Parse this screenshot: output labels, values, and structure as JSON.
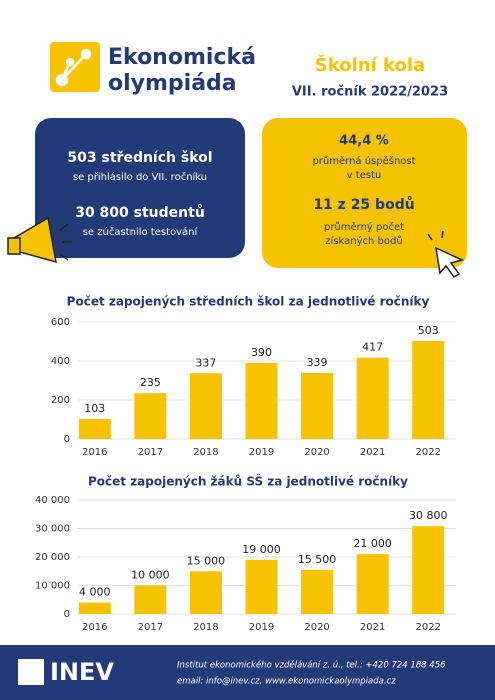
{
  "header": {
    "logo_line1": "Ekonomická",
    "logo_line2": "olympiáda",
    "title": "Školní kola",
    "subtitle": "VII. ročník 2022/2023"
  },
  "cards": {
    "left": [
      {
        "headline": "503 středních škol",
        "text": "se přihlásilo do VII. ročníku"
      },
      {
        "headline": "30 800 studentů",
        "text": "se zúčastnilo testování"
      }
    ],
    "right": [
      {
        "headline": "44,4 %",
        "lines": [
          "průměrná úspěšnost",
          "v testu"
        ]
      },
      {
        "headline": "11 z 25 bodů",
        "lines": [
          "průměrný počet",
          "získaných bodů"
        ]
      }
    ]
  },
  "chart_data": [
    {
      "type": "bar",
      "title": "Počet zapojených středních škol za jednotlivé ročníky",
      "categories": [
        "2016",
        "2017",
        "2018",
        "2019",
        "2020",
        "2021",
        "2022"
      ],
      "values": [
        103,
        235,
        337,
        390,
        339,
        417,
        503
      ],
      "color": "#f7c200",
      "ylim": [
        0,
        600
      ],
      "yticks": [
        0,
        200,
        400,
        600
      ],
      "grid": true
    },
    {
      "type": "bar",
      "title": "Počet zapojených žáků SŠ za jednotlivé ročníky",
      "categories": [
        "2016",
        "2017",
        "2018",
        "2019",
        "2020",
        "2021",
        "2022"
      ],
      "values": [
        4000,
        10000,
        15000,
        19000,
        15500,
        21000,
        30800
      ],
      "value_labels": [
        "4 000",
        "10 000",
        "15 000",
        "19 000",
        "15 500",
        "21 000",
        "30 800"
      ],
      "color": "#f7c200",
      "ylim": [
        0,
        40000
      ],
      "yticks": [
        0,
        {
          "value": 10000,
          "label": "10 000"
        },
        {
          "value": 20000,
          "label": "20 000"
        },
        {
          "value": 30000,
          "label": "30 000"
        },
        {
          "value": 40000,
          "label": "40 000"
        }
      ],
      "grid": true
    }
  ],
  "footer": {
    "logo": "INEV",
    "lines": [
      "Institut ekonomického vzdělávání z. ú., tel.: +420 724 188 456",
      "email: info@inev.cz, www.ekonomickaolympiada.cz"
    ]
  }
}
